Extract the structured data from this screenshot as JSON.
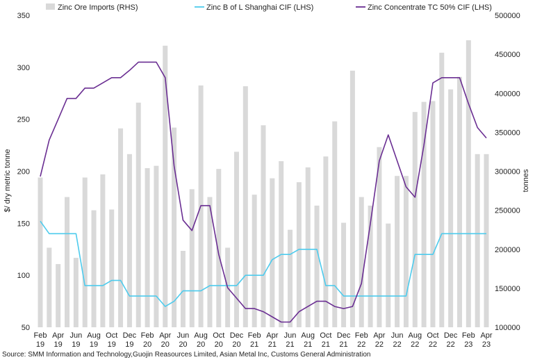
{
  "chart_data": {
    "type": "bar+line",
    "x": [
      "Feb 19",
      "Mar 19",
      "Apr 19",
      "May 19",
      "Jun 19",
      "Jul 19",
      "Aug 19",
      "Sep 19",
      "Oct 19",
      "Nov 19",
      "Dec 19",
      "Jan 20",
      "Feb 20",
      "Mar 20",
      "Apr 20",
      "May 20",
      "Jun 20",
      "Jul 20",
      "Aug 20",
      "Sep 20",
      "Oct 20",
      "Nov 20",
      "Dec 20",
      "Jan 21",
      "Feb 21",
      "Mar 21",
      "Apr 21",
      "May 21",
      "Jun 21",
      "Jul 21",
      "Aug 21",
      "Sep 21",
      "Oct 21",
      "Nov 21",
      "Dec 21",
      "Jan 22",
      "Feb 22",
      "Mar 22",
      "Apr 22",
      "May 22",
      "Jun 22",
      "Jul 22",
      "Aug 22",
      "Sep 22",
      "Oct 22",
      "Nov 22",
      "Dec 22",
      "Jan 23",
      "Feb 23",
      "Mar 23",
      "Apr 23"
    ],
    "x_tick_labels": [
      {
        "index": 0,
        "line1": "Feb",
        "line2": "19"
      },
      {
        "index": 2,
        "line1": "Apr",
        "line2": "19"
      },
      {
        "index": 4,
        "line1": "Jun",
        "line2": "19"
      },
      {
        "index": 6,
        "line1": "Aug",
        "line2": "19"
      },
      {
        "index": 8,
        "line1": "Oct",
        "line2": "19"
      },
      {
        "index": 10,
        "line1": "Dec",
        "line2": "19"
      },
      {
        "index": 12,
        "line1": "Feb",
        "line2": "20"
      },
      {
        "index": 14,
        "line1": "Apr",
        "line2": "20"
      },
      {
        "index": 16,
        "line1": "Jun",
        "line2": "20"
      },
      {
        "index": 18,
        "line1": "Aug",
        "line2": "20"
      },
      {
        "index": 20,
        "line1": "Oct",
        "line2": "20"
      },
      {
        "index": 22,
        "line1": "Dec",
        "line2": "20"
      },
      {
        "index": 24,
        "line1": "Feb",
        "line2": "21"
      },
      {
        "index": 26,
        "line1": "Apr",
        "line2": "21"
      },
      {
        "index": 28,
        "line1": "Jun",
        "line2": "21"
      },
      {
        "index": 30,
        "line1": "Aug",
        "line2": "21"
      },
      {
        "index": 32,
        "line1": "Oct",
        "line2": "21"
      },
      {
        "index": 34,
        "line1": "Dec",
        "line2": "21"
      },
      {
        "index": 36,
        "line1": "Feb",
        "line2": "22"
      },
      {
        "index": 38,
        "line1": "Apr",
        "line2": "22"
      },
      {
        "index": 40,
        "line1": "Jun",
        "line2": "22"
      },
      {
        "index": 42,
        "line1": "Aug",
        "line2": "22"
      },
      {
        "index": 44,
        "line1": "Oct",
        "line2": "22"
      },
      {
        "index": 46,
        "line1": "Dec",
        "line2": "22"
      },
      {
        "index": 48,
        "line1": "Feb",
        "line2": "23"
      },
      {
        "index": 50,
        "line1": "Apr",
        "line2": "23"
      }
    ],
    "left_axis": {
      "label": "$/ dry metric tonne",
      "range": [
        50,
        350
      ],
      "ticks": [
        "50",
        "100",
        "150",
        "200",
        "250",
        "300",
        "350"
      ],
      "tick_values": [
        50,
        100,
        150,
        200,
        250,
        300,
        350
      ]
    },
    "right_axis": {
      "label": "tonnes",
      "range": [
        100000,
        500000
      ],
      "ticks": [
        "100000",
        "150000",
        "200000",
        "250000",
        "300000",
        "350000",
        "400000",
        "450000",
        "500000"
      ],
      "tick_values": [
        100000,
        150000,
        200000,
        250000,
        300000,
        350000,
        400000,
        450000,
        500000
      ]
    },
    "grid": false,
    "legend_position": "top",
    "series": [
      {
        "name": "Zinc Ore Imports (RHS)",
        "type": "bar",
        "axis": "right",
        "color": "#d9d9d9",
        "values": [
          292000,
          202000,
          181000,
          267000,
          189000,
          292000,
          250000,
          296000,
          251000,
          355000,
          322000,
          388000,
          304000,
          307000,
          461000,
          356000,
          198000,
          277000,
          410000,
          267000,
          303000,
          202000,
          325000,
          409000,
          270000,
          359000,
          291000,
          313000,
          225000,
          286000,
          305000,
          256000,
          319000,
          364000,
          234000,
          429000,
          267000,
          256000,
          331000,
          233000,
          294000,
          294000,
          376000,
          389000,
          390000,
          452000,
          405000,
          421000,
          468000,
          322000,
          322000
        ]
      },
      {
        "name": "Zinc B of L Shanghai CIF (LHS)",
        "type": "line",
        "axis": "left",
        "color": "#4dcbed",
        "values": [
          152,
          140,
          140,
          140,
          140,
          90,
          90,
          90,
          95,
          95,
          80,
          80,
          80,
          80,
          70,
          75,
          85,
          85,
          85,
          90,
          90,
          90,
          90,
          100,
          100,
          100,
          115,
          120,
          120,
          125,
          125,
          125,
          90,
          90,
          80,
          80,
          80,
          80,
          80,
          80,
          80,
          80,
          120,
          120,
          120,
          140,
          140,
          140,
          140,
          140,
          140
        ]
      },
      {
        "name": "Zinc Concentrate TC 50% CIF (LHS)",
        "type": "line",
        "axis": "left",
        "color": "#6a2e92",
        "values": [
          195,
          230,
          250,
          270,
          270,
          280,
          280,
          285,
          290,
          290,
          297,
          305,
          305,
          305,
          290,
          205,
          153,
          143,
          167,
          167,
          120,
          88,
          78,
          68,
          68,
          65,
          60,
          55,
          55,
          65,
          70,
          75,
          75,
          70,
          68,
          70,
          92,
          150,
          210,
          235,
          210,
          185,
          175,
          225,
          285,
          290,
          290,
          290,
          265,
          242,
          232
        ]
      }
    ]
  },
  "legend": [
    {
      "label": "Zinc Ore Imports (RHS)",
      "kind": "bar",
      "color": "#d9d9d9"
    },
    {
      "label": "Zinc B of L Shanghai CIF (LHS)",
      "kind": "line",
      "color": "#4dcbed"
    },
    {
      "label": "Zinc Concentrate TC 50% CIF (LHS)",
      "kind": "line",
      "color": "#6a2e92"
    }
  ],
  "source": "Source: SMM Information and  Technology,Guojin Reasources Limited, Asian Metal Inc, Customs General Administration"
}
